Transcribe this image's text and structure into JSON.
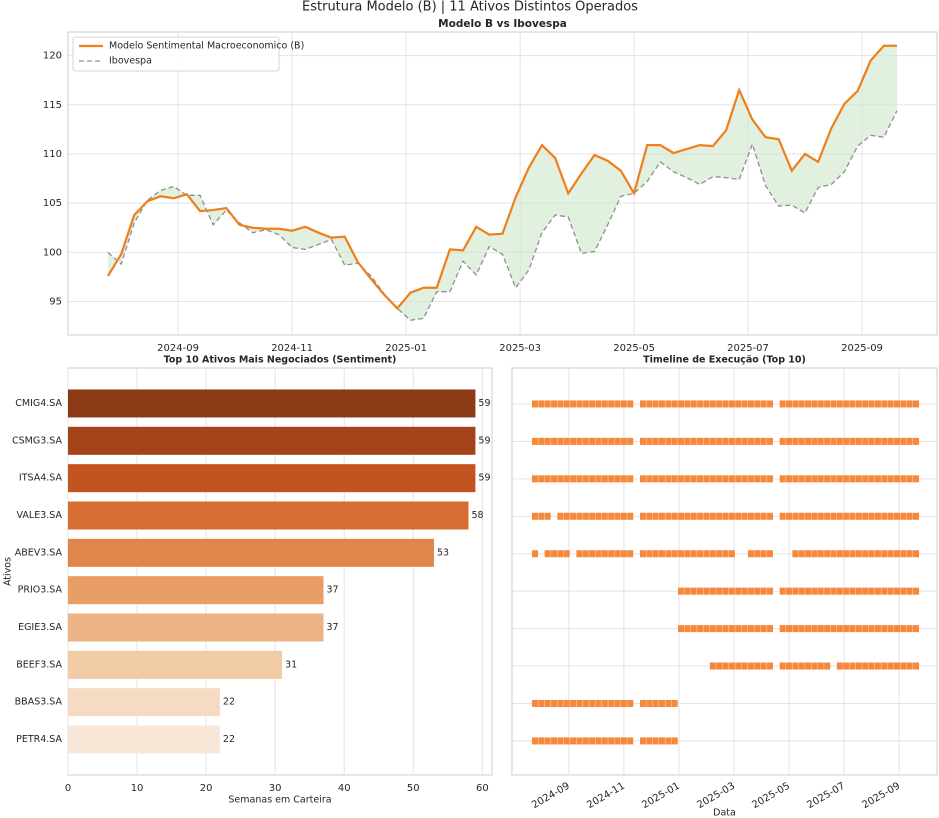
{
  "title": "Estrutura Modelo (B) | 11 Ativos Distintos Operados",
  "chart_data": [
    {
      "type": "line",
      "title": "Modelo B vs Ibovespa",
      "x": [
        0,
        1,
        2,
        3,
        4,
        5,
        6,
        7,
        8,
        9,
        10,
        11,
        12,
        13,
        14,
        15,
        16,
        17,
        18,
        19,
        20,
        21,
        22,
        23,
        24,
        25,
        26,
        27,
        28,
        29,
        30,
        31,
        32,
        33,
        34,
        35,
        36,
        37,
        38,
        39,
        40,
        41,
        42,
        43,
        44,
        45,
        46,
        47,
        48,
        49,
        50,
        51,
        52,
        53,
        54,
        55,
        56,
        57,
        58,
        59,
        60
      ],
      "series": [
        {
          "name": "Modelo Sentimental Macroeconomico (B)",
          "color": "#ef7f1a",
          "values": [
            97.6,
            99.8,
            103.8,
            105.2,
            105.7,
            105.5,
            105.9,
            104.2,
            104.3,
            104.5,
            102.8,
            102.5,
            102.4,
            102.4,
            102.2,
            102.6,
            102.0,
            101.5,
            101.6,
            99.0,
            97.3,
            95.7,
            94.3,
            95.9,
            96.4,
            96.4,
            100.3,
            100.2,
            102.6,
            101.8,
            101.9,
            105.6,
            108.6,
            110.9,
            109.6,
            106.0,
            108.0,
            109.9,
            109.3,
            108.3,
            106.0,
            110.9,
            110.9,
            110.1,
            110.5,
            110.9,
            110.8,
            112.4,
            116.5,
            113.5,
            111.7,
            111.5,
            108.3,
            110.0,
            109.2,
            112.6,
            115.1,
            116.4,
            119.5,
            121.0,
            121.0
          ]
        },
        {
          "name": "Ibovespa",
          "color": "#8f8f8f",
          "dashed": true,
          "values": [
            100.0,
            98.8,
            103.0,
            105.3,
            106.3,
            106.7,
            105.8,
            105.8,
            102.8,
            104.3,
            103.0,
            102.0,
            102.3,
            101.8,
            100.5,
            100.3,
            100.8,
            101.3,
            98.7,
            98.9,
            97.6,
            95.8,
            94.3,
            93.1,
            93.3,
            96.0,
            96.0,
            99.1,
            97.7,
            100.6,
            99.8,
            96.4,
            98.2,
            102.0,
            103.8,
            103.6,
            99.9,
            100.1,
            102.8,
            105.7,
            106.0,
            107.2,
            109.2,
            108.2,
            107.6,
            106.9,
            107.7,
            107.6,
            107.4,
            111.0,
            106.8,
            104.7,
            104.8,
            104.0,
            106.6,
            106.9,
            108.2,
            110.8,
            111.9,
            111.7,
            114.4
          ]
        }
      ],
      "fill_between": "#cfe6cc",
      "xlim": [
        -3.04,
        63.04
      ],
      "xticks": [
        {
          "value": 5.33,
          "label": "2024-09"
        },
        {
          "value": 14.0,
          "label": "2024-11"
        },
        {
          "value": 22.67,
          "label": "2025-01"
        },
        {
          "value": 31.34,
          "label": "2025-03"
        },
        {
          "value": 40.01,
          "label": "2025-05"
        },
        {
          "value": 48.67,
          "label": "2025-07"
        },
        {
          "value": 57.34,
          "label": "2025-09"
        }
      ],
      "ylim": [
        91.6,
        122.4
      ],
      "yticks": [
        95,
        100,
        105,
        110,
        115,
        120
      ],
      "grid": true,
      "legend": "upper left"
    },
    {
      "type": "bar",
      "horizontal": true,
      "title": "Top 10 Ativos Mais Negociados (Sentiment)",
      "categories": [
        "CMIG4.SA",
        "CSMG3.SA",
        "ITSA4.SA",
        "VALE3.SA",
        "ABEV3.SA",
        "PRIO3.SA",
        "EGIE3.SA",
        "BEEF3.SA",
        "BBAS3.SA",
        "PETR4.SA"
      ],
      "values": [
        59,
        59,
        59,
        58,
        53,
        37,
        37,
        31,
        22,
        22
      ],
      "colors": [
        "#8b3a16",
        "#a44319",
        "#c2541f",
        "#d76d32",
        "#e0864b",
        "#e89e66",
        "#ecb385",
        "#f1caa6",
        "#f5dbc3",
        "#f8e7d7"
      ],
      "xlabel": "Semanas em Carteira",
      "ylabel": "Ativos",
      "xlim": [
        0,
        61.4
      ],
      "xticks": [
        0,
        10,
        20,
        30,
        40,
        50,
        60
      ],
      "grid": true
    },
    {
      "type": "scatter",
      "title": "Timeline de Execução (Top 10)",
      "xlabel": "Data",
      "color": "#f5883a",
      "marker": "square",
      "xlim": [
        -3.62,
        63.3
      ],
      "xticks": [
        {
          "value": 5.33,
          "label": "2024-09"
        },
        {
          "value": 14.0,
          "label": "2024-11"
        },
        {
          "value": 22.67,
          "label": "2025-01"
        },
        {
          "value": 31.34,
          "label": "2025-03"
        },
        {
          "value": 40.01,
          "label": "2025-05"
        },
        {
          "value": 48.67,
          "label": "2025-07"
        },
        {
          "value": 57.34,
          "label": "2025-09"
        }
      ],
      "ylim": [
        9.91,
        -0.96
      ],
      "grid": true,
      "series": [
        {
          "y": 0,
          "x": [
            0,
            1,
            2,
            3,
            4,
            5,
            6,
            7,
            8,
            9,
            10,
            11,
            12,
            13,
            14,
            15,
            17,
            18,
            19,
            20,
            21,
            22,
            23,
            24,
            25,
            26,
            27,
            28,
            29,
            30,
            31,
            32,
            33,
            34,
            35,
            36,
            37,
            39,
            40,
            41,
            42,
            43,
            44,
            45,
            46,
            47,
            48,
            49,
            50,
            51,
            52,
            53,
            54,
            55,
            56,
            57,
            58,
            59,
            60
          ]
        },
        {
          "y": 1,
          "x": [
            0,
            1,
            2,
            3,
            4,
            5,
            6,
            7,
            8,
            9,
            10,
            11,
            12,
            13,
            14,
            15,
            17,
            18,
            19,
            20,
            21,
            22,
            23,
            24,
            25,
            26,
            27,
            28,
            29,
            30,
            31,
            32,
            33,
            34,
            35,
            36,
            37,
            39,
            40,
            41,
            42,
            43,
            44,
            45,
            46,
            47,
            48,
            49,
            50,
            51,
            52,
            53,
            54,
            55,
            56,
            57,
            58,
            59,
            60
          ]
        },
        {
          "y": 2,
          "x": [
            0,
            1,
            2,
            3,
            4,
            5,
            6,
            7,
            8,
            9,
            10,
            11,
            12,
            13,
            14,
            15,
            17,
            18,
            19,
            20,
            21,
            22,
            23,
            24,
            25,
            26,
            27,
            28,
            29,
            30,
            31,
            32,
            33,
            34,
            35,
            36,
            37,
            39,
            40,
            41,
            42,
            43,
            44,
            45,
            46,
            47,
            48,
            49,
            50,
            51,
            52,
            53,
            54,
            55,
            56,
            57,
            58,
            59,
            60
          ]
        },
        {
          "y": 3,
          "x": [
            0,
            1,
            2,
            4,
            5,
            6,
            7,
            8,
            9,
            10,
            11,
            12,
            13,
            14,
            15,
            17,
            18,
            19,
            20,
            21,
            22,
            23,
            24,
            25,
            26,
            27,
            28,
            29,
            30,
            31,
            32,
            33,
            34,
            35,
            36,
            37,
            39,
            40,
            41,
            42,
            43,
            44,
            45,
            46,
            47,
            48,
            49,
            50,
            51,
            52,
            53,
            54,
            55,
            56,
            57,
            58,
            59,
            60
          ]
        },
        {
          "y": 4,
          "x": [
            0,
            2,
            3,
            4,
            5,
            7,
            8,
            9,
            10,
            11,
            12,
            13,
            14,
            15,
            17,
            18,
            19,
            20,
            21,
            22,
            23,
            24,
            25,
            26,
            27,
            28,
            29,
            30,
            31,
            34,
            35,
            36,
            37,
            41,
            42,
            43,
            44,
            45,
            46,
            47,
            48,
            49,
            50,
            51,
            52,
            53,
            54,
            55,
            56,
            57,
            58,
            59,
            60
          ]
        },
        {
          "y": 5,
          "x": [
            23,
            24,
            25,
            26,
            27,
            28,
            29,
            30,
            31,
            32,
            33,
            34,
            35,
            36,
            37,
            39,
            40,
            41,
            42,
            43,
            44,
            45,
            46,
            47,
            48,
            49,
            50,
            51,
            52,
            53,
            54,
            55,
            56,
            57,
            58,
            59,
            60
          ]
        },
        {
          "y": 6,
          "x": [
            23,
            24,
            25,
            26,
            27,
            28,
            29,
            30,
            31,
            32,
            33,
            34,
            35,
            36,
            37,
            39,
            40,
            41,
            42,
            43,
            44,
            45,
            46,
            47,
            48,
            49,
            50,
            51,
            52,
            53,
            54,
            55,
            56,
            57,
            58,
            59,
            60
          ]
        },
        {
          "y": 7,
          "x": [
            28,
            29,
            30,
            31,
            32,
            33,
            34,
            35,
            36,
            37,
            39,
            40,
            41,
            42,
            43,
            44,
            45,
            46,
            48,
            49,
            50,
            51,
            52,
            53,
            54,
            55,
            56,
            57,
            58,
            59,
            60
          ]
        },
        {
          "y": 8,
          "x": [
            0,
            1,
            2,
            3,
            4,
            5,
            6,
            7,
            8,
            9,
            10,
            11,
            12,
            13,
            14,
            15,
            17,
            18,
            19,
            20,
            21,
            22
          ]
        },
        {
          "y": 9,
          "x": [
            0,
            1,
            2,
            3,
            4,
            5,
            6,
            7,
            8,
            9,
            10,
            11,
            12,
            13,
            14,
            15,
            17,
            18,
            19,
            20,
            21,
            22
          ]
        }
      ]
    }
  ]
}
